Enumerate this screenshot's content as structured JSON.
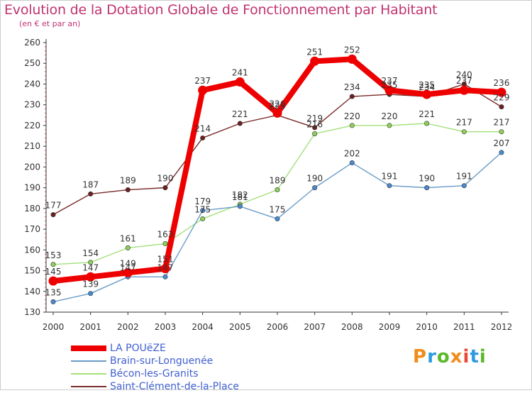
{
  "title": "Evolution de la Dotation Globale de Fonctionnement par Habitant",
  "subtitle": "(en € et par an)",
  "brand": {
    "text": "Proxiti",
    "colors": [
      "#f08c1a",
      "#2e9be0",
      "#5cb82a",
      "#f08c1a",
      "#e8473a",
      "#2e9be0",
      "#5cb82a"
    ]
  },
  "chart_data": {
    "type": "line",
    "title": "Evolution de la Dotation Globale de Fonctionnement par Habitant",
    "subtitle": "(en € et par an)",
    "xlabel": "",
    "ylabel": "",
    "ylim": [
      130,
      260
    ],
    "y_ticks": [
      130,
      140,
      150,
      160,
      170,
      180,
      190,
      200,
      210,
      220,
      230,
      240,
      250,
      260
    ],
    "categories": [
      "2000",
      "2001",
      "2002",
      "2003",
      "2004",
      "2005",
      "2006",
      "2007",
      "2008",
      "2009",
      "2010",
      "2011",
      "2012"
    ],
    "series": [
      {
        "name": "Saint-Clément-de-la-Place",
        "color": "#7a2a2a",
        "marker": "#6b1f1f",
        "bold": false,
        "values": [
          177,
          187,
          189,
          190,
          214,
          221,
          225,
          219,
          234,
          235,
          234,
          240,
          229
        ]
      },
      {
        "name": "Bécon-les-Granits",
        "color": "#a3e07a",
        "marker": "#8fd05a",
        "bold": false,
        "values": [
          153,
          154,
          161,
          163,
          175,
          182,
          189,
          216,
          220,
          220,
          221,
          217,
          217
        ]
      },
      {
        "name": "Brain-sur-Longuenée",
        "color": "#6a9cc8",
        "marker": "#4a8ad0",
        "bold": false,
        "values": [
          135,
          139,
          147,
          147,
          179,
          181,
          175,
          190,
          202,
          191,
          190,
          191,
          207
        ]
      },
      {
        "name": "LA POUëZE",
        "color": "#ee0000",
        "marker": "#ee0000",
        "bold": true,
        "values": [
          145,
          147,
          149,
          151,
          237,
          241,
          226,
          251,
          252,
          237,
          235,
          237,
          236
        ]
      }
    ],
    "legend": [
      "LA POUëZE",
      "Brain-sur-Longuenée",
      "Bécon-les-Granits",
      "Saint-Clément-de-la-Place"
    ],
    "legend_position": "bottom-left",
    "grid": false
  }
}
